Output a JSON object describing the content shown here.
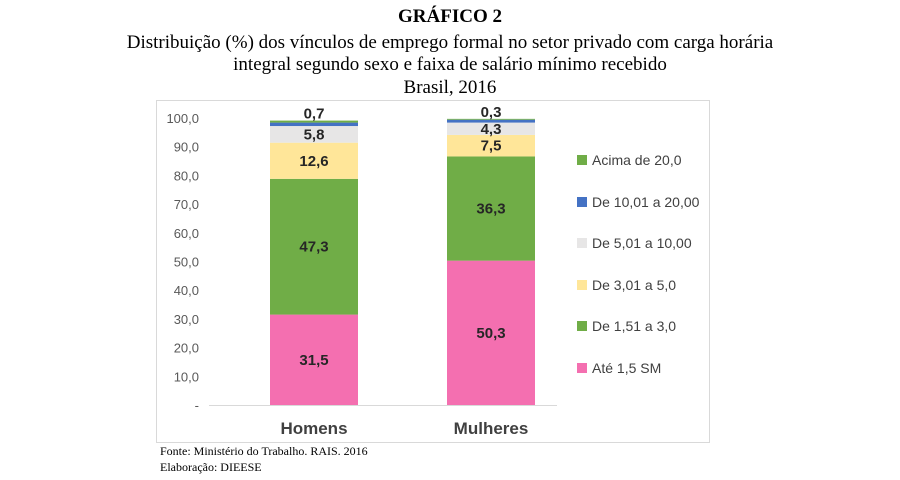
{
  "header": {
    "label": "GRÁFICO 2",
    "line1": "Distribuição (%) dos vínculos de emprego formal no setor privado com carga horária",
    "line2": "integral segundo sexo e faixa de salário mínimo recebido",
    "line3": "Brasil, 2016"
  },
  "chart_data": {
    "type": "bar",
    "stacked": true,
    "categories": [
      "Homens",
      "Mulheres"
    ],
    "series": [
      {
        "name": "Até 1,5 SM",
        "values": [
          31.5,
          50.3
        ],
        "labels": [
          "31,5",
          "50,3"
        ],
        "color": "#f46fb0"
      },
      {
        "name": "De 1,51 a 3,0",
        "values": [
          47.3,
          36.3
        ],
        "labels": [
          "47,3",
          "36,3"
        ],
        "color": "#70ad47"
      },
      {
        "name": "De 3,01 a 5,0",
        "values": [
          12.6,
          7.5
        ],
        "labels": [
          "12,6",
          "7,5"
        ],
        "color": "#ffe699"
      },
      {
        "name": "De 5,01 a 10,00",
        "values": [
          5.8,
          4.3
        ],
        "labels": [
          "5,8",
          "4,3"
        ],
        "color": "#e7e6e6"
      },
      {
        "name": "De 10,01 a 20,00",
        "values": [
          1.2,
          1.0
        ],
        "labels": [
          "",
          ""
        ],
        "color": "#4472c4"
      },
      {
        "name": "Acima de 20,0",
        "values": [
          0.7,
          0.3
        ],
        "labels": [
          "0,7",
          "0,3"
        ],
        "color": "#70ad47"
      }
    ],
    "yticks": [
      "-",
      "10,0",
      "20,0",
      "30,0",
      "40,0",
      "50,0",
      "60,0",
      "70,0",
      "80,0",
      "90,0",
      "100,0"
    ],
    "ylim": [
      0,
      100
    ],
    "legend_position": "right",
    "legend_order": [
      "Acima de 20,0",
      "De 10,01 a 20,00",
      "De 5,01 a 10,00",
      "De 3,01 a 5,0",
      "De 1,51 a 3,0",
      "Até 1,5 SM"
    ],
    "grid": false
  },
  "footer": {
    "source": "Fonte: Ministério do Trabalho. RAIS. 2016",
    "credit": "Elaboração: DIEESE"
  }
}
